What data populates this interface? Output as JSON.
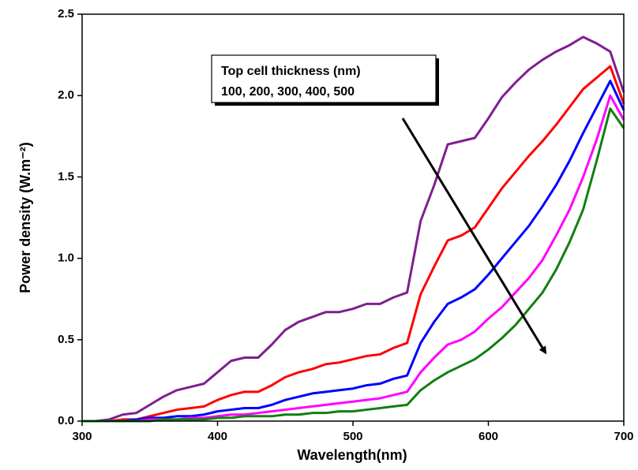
{
  "chart_data": {
    "type": "line",
    "xlabel": "Wavelength(nm)",
    "ylabel": "Power density (W.m⁻²)",
    "annotation": [
      "Top cell thickness (nm)",
      "100, 200, 300, 400, 500"
    ],
    "xlim": [
      300,
      700
    ],
    "xticks": [
      300,
      400,
      500,
      600,
      700
    ],
    "ylim": [
      0,
      2.5
    ],
    "yticks": [
      {
        "value": 0,
        "label": "0.0"
      },
      0.5,
      {
        "value": 1,
        "label": "1.0"
      },
      1.5,
      {
        "value": 2,
        "label": "2.0"
      },
      2.5
    ],
    "x": [
      300,
      310,
      320,
      330,
      340,
      350,
      360,
      370,
      380,
      390,
      400,
      410,
      420,
      430,
      440,
      450,
      460,
      470,
      480,
      490,
      500,
      510,
      520,
      530,
      540,
      550,
      560,
      570,
      580,
      590,
      600,
      610,
      620,
      630,
      640,
      650,
      660,
      670,
      680,
      690,
      700
    ],
    "series": [
      {
        "color": "#7f1f8f",
        "values": [
          0,
          0,
          0.01,
          0.04,
          0.05,
          0.1,
          0.15,
          0.19,
          0.21,
          0.23,
          0.3,
          0.37,
          0.39,
          0.39,
          0.47,
          0.56,
          0.61,
          0.64,
          0.67,
          0.67,
          0.69,
          0.72,
          0.72,
          0.76,
          0.79,
          1.23,
          1.45,
          1.7,
          1.72,
          1.74,
          1.86,
          1.99,
          2.08,
          2.16,
          2.22,
          2.27,
          2.31,
          2.36,
          2.32,
          2.27,
          2.02
        ]
      },
      {
        "color": "#ff0000",
        "values": [
          0,
          0,
          0,
          0.01,
          0.01,
          0.03,
          0.05,
          0.07,
          0.08,
          0.09,
          0.13,
          0.16,
          0.18,
          0.18,
          0.22,
          0.27,
          0.3,
          0.32,
          0.35,
          0.36,
          0.38,
          0.4,
          0.41,
          0.45,
          0.48,
          0.78,
          0.95,
          1.11,
          1.14,
          1.19,
          1.31,
          1.43,
          1.53,
          1.63,
          1.72,
          1.82,
          1.93,
          2.04,
          2.11,
          2.18,
          1.95
        ]
      },
      {
        "color": "#0000ff",
        "values": [
          0,
          0,
          0,
          0,
          0.01,
          0.02,
          0.02,
          0.03,
          0.03,
          0.04,
          0.06,
          0.07,
          0.08,
          0.08,
          0.1,
          0.13,
          0.15,
          0.17,
          0.18,
          0.19,
          0.2,
          0.22,
          0.23,
          0.26,
          0.28,
          0.48,
          0.61,
          0.72,
          0.76,
          0.81,
          0.9,
          1.0,
          1.1,
          1.2,
          1.32,
          1.45,
          1.6,
          1.77,
          1.93,
          2.09,
          1.91
        ]
      },
      {
        "color": "#ff00ff",
        "values": [
          0,
          0,
          0,
          0,
          0,
          0.01,
          0.01,
          0.01,
          0.02,
          0.02,
          0.03,
          0.04,
          0.04,
          0.05,
          0.06,
          0.07,
          0.08,
          0.09,
          0.1,
          0.11,
          0.12,
          0.13,
          0.14,
          0.16,
          0.18,
          0.3,
          0.39,
          0.47,
          0.5,
          0.55,
          0.63,
          0.7,
          0.79,
          0.88,
          0.99,
          1.14,
          1.3,
          1.5,
          1.73,
          2.0,
          1.85
        ]
      },
      {
        "color": "#108010",
        "values": [
          0,
          0,
          0,
          0,
          0,
          0,
          0.01,
          0.01,
          0.01,
          0.01,
          0.02,
          0.02,
          0.03,
          0.03,
          0.03,
          0.04,
          0.04,
          0.05,
          0.05,
          0.06,
          0.06,
          0.07,
          0.08,
          0.09,
          0.1,
          0.19,
          0.25,
          0.3,
          0.34,
          0.38,
          0.44,
          0.51,
          0.59,
          0.69,
          0.79,
          0.93,
          1.1,
          1.3,
          1.6,
          1.92,
          1.8
        ]
      }
    ]
  }
}
